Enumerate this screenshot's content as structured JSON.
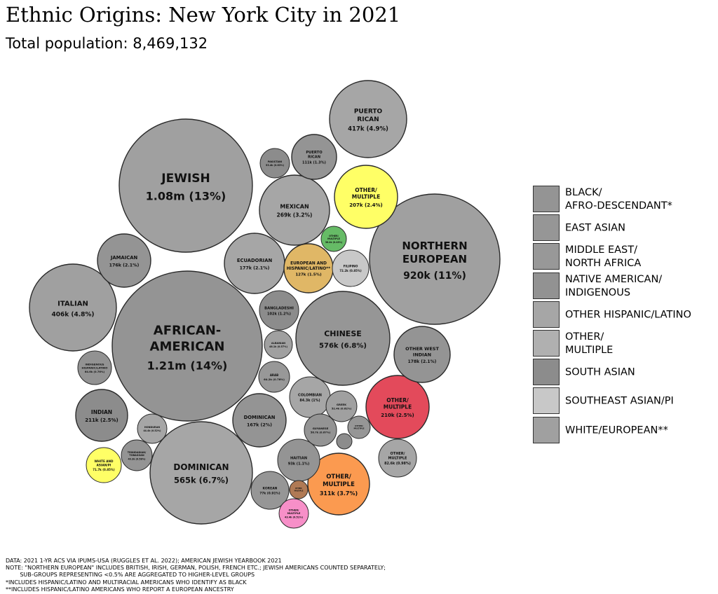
{
  "title": "Ethnic Origins: New York City in 2021",
  "subtitle": "Total population: 8,469,132",
  "chart_data": {
    "type": "bubble",
    "title": "Ethnic Origins: New York City in 2021",
    "total_population": "8,469,132",
    "bubbles": [
      {
        "name": "JEWISH",
        "value": "1.08m (13%)",
        "group": "WHITE/EUROPEAN**",
        "color": "#a0a0a0"
      },
      {
        "name": "AFRICAN-AMERICAN",
        "value": "1.21m (14%)",
        "group": "BLACK/AFRO-DESCENDANT*",
        "color": "#949494"
      },
      {
        "name": "NORTHERN EUROPEAN",
        "value": "920k (11%)",
        "group": "WHITE/EUROPEAN**",
        "color": "#a0a0a0"
      },
      {
        "name": "DOMINICAN",
        "value": "565k (6.7%)",
        "group": "OTHER HISPANIC/LATINO",
        "color": "#a6a6a6"
      },
      {
        "name": "CHINESE",
        "value": "576k (6.8%)",
        "group": "EAST ASIAN",
        "color": "#969696"
      },
      {
        "name": "PUERTO RICAN",
        "value": "417k (4.9%)",
        "group": "OTHER HISPANIC/LATINO",
        "color": "#a6a6a6"
      },
      {
        "name": "ITALIAN",
        "value": "406k (4.8%)",
        "group": "WHITE/EUROPEAN**",
        "color": "#a0a0a0"
      },
      {
        "name": "OTHER/ MULTIPLE",
        "value": "311k (3.7%)",
        "group": "OTHER/ MULTIPLE",
        "color": "#fb9a50"
      },
      {
        "name": "MEXICAN",
        "value": "269k (3.2%)",
        "group": "OTHER HISPANIC/LATINO",
        "color": "#a6a6a6"
      },
      {
        "name": "INDIAN",
        "value": "211k (2.5%)",
        "group": "SOUTH ASIAN",
        "color": "#8c8c8c"
      },
      {
        "name": "OTHER/ MULTIPLE",
        "value": "210k (2.5%)",
        "group": "BLACK/AFRO-DESCENDANT*",
        "color": "#e34a5b"
      },
      {
        "name": "OTHER/ MULTIPLE",
        "value": "207k (2.4%)",
        "group": "OTHER/ MULTIPLE",
        "color": "#ffff66"
      },
      {
        "name": "OTHER WEST INDIAN",
        "value": "178k (2.1%)",
        "group": "BLACK/AFRO-DESCENDANT*",
        "color": "#949494"
      },
      {
        "name": "ECUADORIAN",
        "value": "177k (2.1%)",
        "group": "OTHER HISPANIC/LATINO",
        "color": "#a6a6a6"
      },
      {
        "name": "JAMAICAN",
        "value": "176k (2.1%)",
        "group": "BLACK/AFRO-DESCENDANT*",
        "color": "#949494"
      },
      {
        "name": "DOMINICAN",
        "value": "167k (2%)",
        "group": "BLACK/AFRO-DESCENDANT*",
        "color": "#949494"
      },
      {
        "name": "EUROPEAN AND HISPANIC/LATINO**",
        "value": "127k (1.5%)",
        "group": "OTHER/ MULTIPLE",
        "color": "#e0b766"
      },
      {
        "name": "PUERTO RICAN",
        "value": "111k (1.3%)",
        "group": "BLACK/AFRO-DESCENDANT*",
        "color": "#949494"
      },
      {
        "name": "BANGLADESHI",
        "value": "102k (1.2%)",
        "group": "SOUTH ASIAN",
        "color": "#8c8c8c"
      },
      {
        "name": "HAITIAN",
        "value": "93k (1.1%)",
        "group": "BLACK/AFRO-DESCENDANT*",
        "color": "#949494"
      },
      {
        "name": "COLOMBIAN",
        "value": "84.3k (1%)",
        "group": "OTHER HISPANIC/LATINO",
        "color": "#a6a6a6"
      },
      {
        "name": "OTHER/ MULTIPLE",
        "value": "82.6k (0.98%)",
        "group": "OTHER/ MULTIPLE",
        "color": "#a6a6a6"
      },
      {
        "name": "KOREAN",
        "value": "77k (0.91%)",
        "group": "EAST ASIAN",
        "color": "#969696"
      },
      {
        "name": "FILIPINO",
        "value": "72.2k (0.85%)",
        "group": "SOUTHEAST ASIAN/PI",
        "color": "#c8c8c8"
      },
      {
        "name": "WHITE AND ASIAN/PI",
        "value": "71.7k (0.85%)",
        "group": "OTHER/ MULTIPLE",
        "color": "#ffff66"
      },
      {
        "name": "ARAB",
        "value": "64.2k (0.76%)",
        "group": "MIDDLE EAST/ NORTH AFRICA",
        "color": "#989898"
      },
      {
        "name": "INDIGENOUS HISPANIC/LATINO",
        "value": "64.6k (0.76%)",
        "group": "NATIVE AMERICAN/ INDIGENOUS",
        "color": "#929292"
      },
      {
        "name": "GUYANESE",
        "value": "56.7k (0.67%)",
        "group": "BLACK/AFRO-DESCENDANT*",
        "color": "#949494"
      },
      {
        "name": "GREEK",
        "value": "52.4k (0.62%)",
        "group": "WHITE/EUROPEAN**",
        "color": "#a0a0a0"
      },
      {
        "name": "PAKISTANI",
        "value": "53.4k (0.63%)",
        "group": "SOUTH ASIAN",
        "color": "#8c8c8c"
      },
      {
        "name": "TRINIDADIAN/ TOBAGOAN",
        "value": "49.3k (0.58%)",
        "group": "BLACK/AFRO-DESCENDANT*",
        "color": "#949494"
      },
      {
        "name": "ALBANIAN",
        "value": "48.1k (0.57%)",
        "group": "WHITE/EUROPEAN**",
        "color": "#a0a0a0"
      },
      {
        "name": "HONDURAN",
        "value": "44.4k (0.52%)",
        "group": "OTHER HISPANIC/LATINO",
        "color": "#a6a6a6"
      },
      {
        "name": "OTHER/ MULTIPLE",
        "value": "43.4k (0.51%)",
        "group": "OTHER/ MULTIPLE",
        "color": "#f78fc8"
      },
      {
        "name": "OTHER/ MULTIPLE",
        "value": "36.4k (0.43%)",
        "group": "OTHER/ MULTIPLE",
        "color": "#66bb66"
      },
      {
        "name": "OTHER/ MULTIPLE",
        "value": "",
        "group": "EAST ASIAN",
        "color": "#969696"
      },
      {
        "name": "OTHER/ MULTIPLE",
        "value": "",
        "group": "OTHER/ MULTIPLE",
        "color": "#b07a55"
      },
      {
        "name": "",
        "value": "",
        "group": "SOUTH ASIAN",
        "color": "#8c8c8c"
      }
    ],
    "legend_placement": "right"
  },
  "legend": [
    {
      "label": "BLACK/\nAFRO-DESCENDANT*",
      "color": "#949494"
    },
    {
      "label": "EAST ASIAN",
      "color": "#969696"
    },
    {
      "label": "MIDDLE EAST/\nNORTH AFRICA",
      "color": "#989898"
    },
    {
      "label": "NATIVE AMERICAN/\nINDIGENOUS",
      "color": "#929292"
    },
    {
      "label": "OTHER HISPANIC/LATINO",
      "color": "#a6a6a6"
    },
    {
      "label": "OTHER/\nMULTIPLE",
      "color": "#b0b0b0"
    },
    {
      "label": "SOUTH ASIAN",
      "color": "#8c8c8c"
    },
    {
      "label": "SOUTHEAST ASIAN/PI",
      "color": "#c8c8c8"
    },
    {
      "label": "WHITE/EUROPEAN**",
      "color": "#a0a0a0"
    }
  ],
  "footnotes": [
    "DATA: 2021 1-YR ACS VIA IPUMS-USA (RUGGLES ET AL. 2022); AMERICAN JEWISH YEARBOOK 2021",
    "NOTE: \"NORTHERN EUROPEAN\" INCLUDES BRITISH, IRISH, GERMAN, POLISH, FRENCH ETC.; JEWISH AMERICANS COUNTED SEPARATELY;",
    "        SUB-GROUPS REPRESENTING <0.5% ARE AGGREGATED TO HIGHER-LEVEL GROUPS",
    "*INCLUDES HISPANIC/LATINO AND MULTIRACIAL AMERICANS WHO IDENTIFY AS BLACK",
    "**INCLUDES HISPANIC/LATINO AMERICANS WHO REPORT A EUROPEAN ANCESTRY"
  ]
}
